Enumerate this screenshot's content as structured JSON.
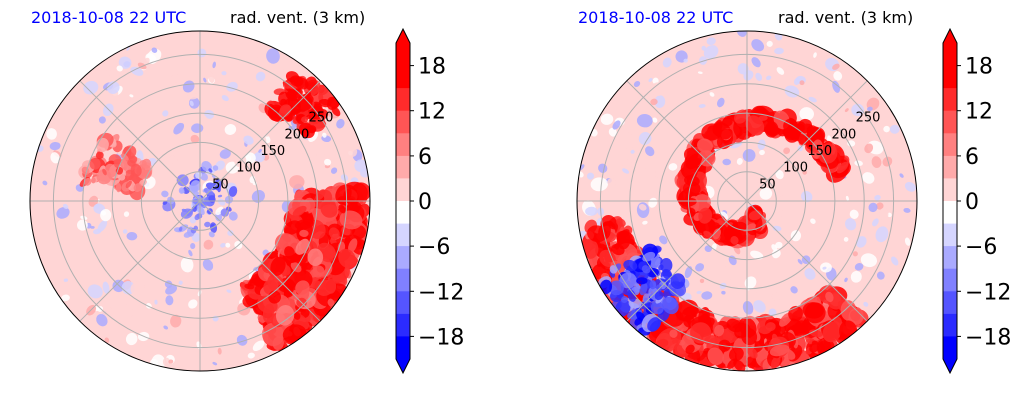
{
  "chart_data": [
    {
      "type": "heatmap",
      "time": "2018-10-08 22 UTC",
      "title": "rad. vent. (3 km)",
      "colorbar": {
        "ticks": [
          18,
          12,
          6,
          0,
          -6,
          -12,
          -18
        ],
        "tick_labels": [
          "18",
          "12",
          "6",
          "0",
          "−6",
          "−12",
          "−18"
        ],
        "range": [
          -21,
          21
        ],
        "extend": "both",
        "colors": {
          "negative": "#0000ff",
          "zero": "#ffffff",
          "positive": "#ff0000"
        }
      },
      "ring_labels": [
        "50",
        "100",
        "150",
        "200",
        "250"
      ],
      "features": {
        "band_arc": [
          -0.35,
          0.02
        ],
        "band_radius": [
          0.55,
          0.98
        ],
        "spiral": false,
        "nw_band": true
      }
    },
    {
      "type": "heatmap",
      "time": "2018-10-08 22 UTC",
      "title": "rad. vent. (3 km)",
      "colorbar": {
        "ticks": [
          18,
          12,
          6,
          0,
          -6,
          -12,
          -18
        ],
        "tick_labels": [
          "18",
          "12",
          "6",
          "0",
          "−6",
          "−12",
          "−18"
        ],
        "range": [
          -21,
          21
        ],
        "extend": "both",
        "colors": {
          "negative": "#0000ff",
          "zero": "#ffffff",
          "positive": "#ff0000"
        }
      },
      "ring_labels": [
        "50",
        "100",
        "150",
        "200",
        "250"
      ],
      "features": {
        "band_arc": [
          -0.95,
          -0.25
        ],
        "band_radius": [
          0.72,
          0.98
        ],
        "spiral": true,
        "nw_band": false
      }
    }
  ]
}
